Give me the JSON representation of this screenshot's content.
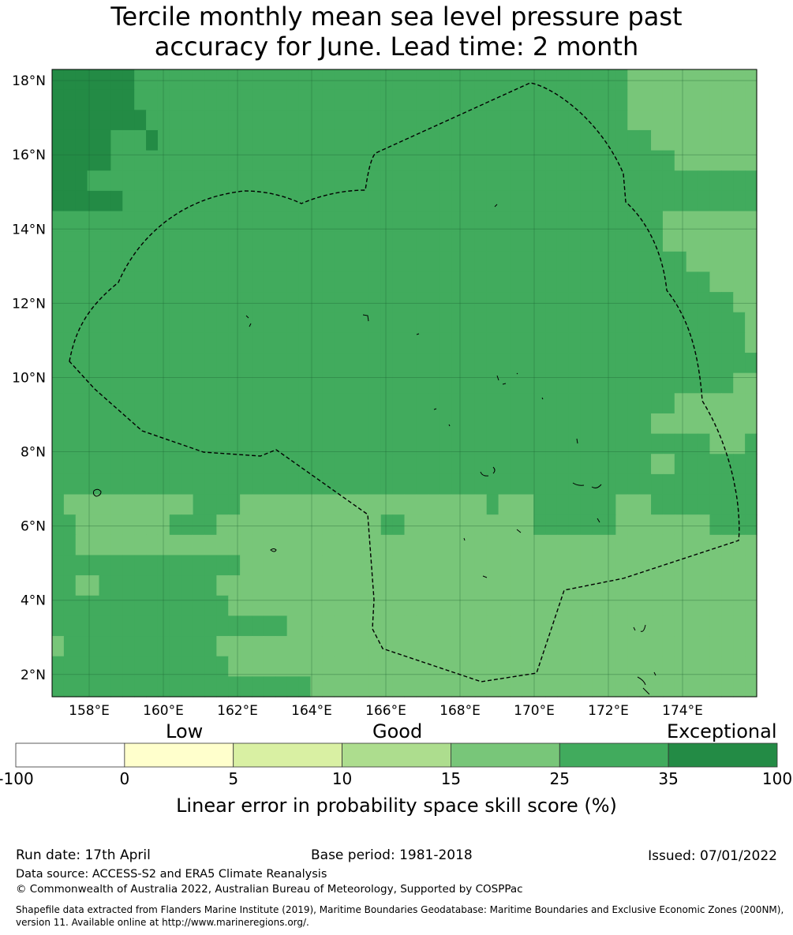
{
  "title": {
    "line1": "Tercile monthly mean sea level pressure past",
    "line2": "accuracy for June. Lead time: 2 month"
  },
  "map": {
    "lon_labels": [
      "158°E",
      "160°E",
      "162°E",
      "164°E",
      "166°E",
      "168°E",
      "170°E",
      "172°E",
      "174°E"
    ],
    "lat_labels": [
      "18°N",
      "16°N",
      "14°N",
      "12°N",
      "10°N",
      "8°N",
      "6°N",
      "4°N",
      "2°N"
    ],
    "lon_range": [
      157.0,
      176.0
    ],
    "lat_range": [
      1.4,
      18.3
    ],
    "colors": {
      "exceptional": "#238b45",
      "good_high": "#41ab5d",
      "good_mid": "#78c679",
      "boundary": "#000000",
      "grid": "#1a5e30"
    },
    "boundary_style": "dashed"
  },
  "scale_words": {
    "low": "Low",
    "good": "Good",
    "exceptional": "Exceptional"
  },
  "colorbar": {
    "ticks": [
      "-100",
      "0",
      "5",
      "10",
      "15",
      "25",
      "35",
      "100"
    ],
    "colors": [
      "#ffffff",
      "#ffffcc",
      "#d9f0a3",
      "#addd8e",
      "#78c679",
      "#41ab5d",
      "#238b45"
    ],
    "title": "Linear error in probability space skill score (%)"
  },
  "footer": {
    "run_date": "Run date: 17th April",
    "base_period": "Base period: 1981-2018",
    "issued": "Issued: 07/01/2022",
    "data_source": "Data source: ACCESS-S2 and ERA5 Climate Reanalysis",
    "copyright": "© Commonwealth of Australia 2022, Australian Bureau of Meteorology, Supported by COSPPac",
    "shapefile": "Shapefile data extracted from Flanders Marine Institute (2019), Maritime Boundaries Geodatabase: Maritime Boundaries and Exclusive Economic Zones (200NM), version 11. Available online at http://www.marineregions.org/."
  }
}
